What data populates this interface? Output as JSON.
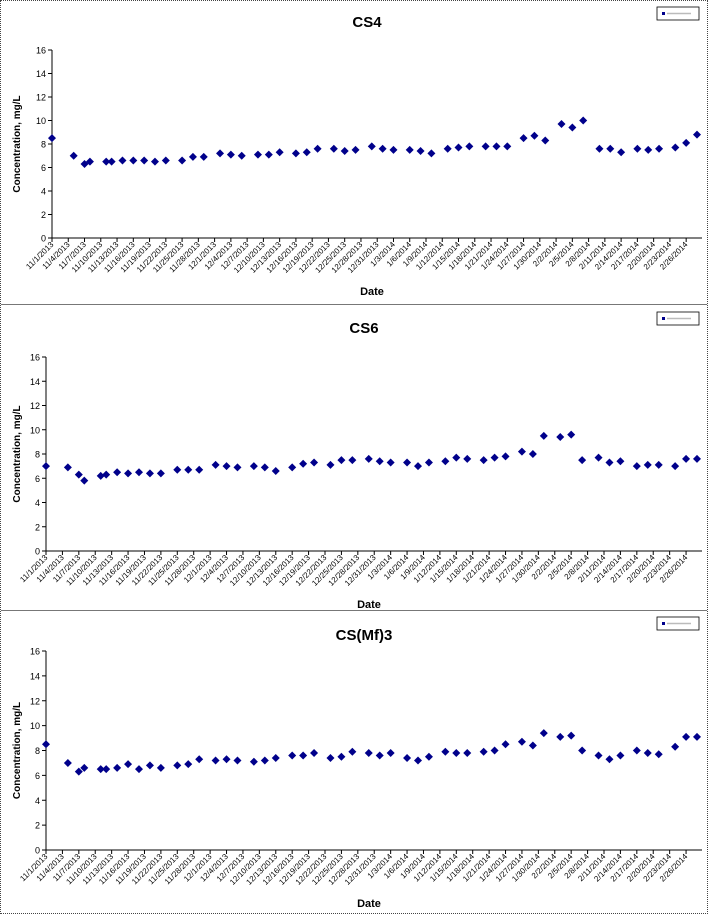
{
  "chart_data": [
    {
      "type": "scatter",
      "title": "CS4",
      "xlabel": "Date",
      "ylabel": "Concentration, mg/L",
      "ylim": [
        0,
        16
      ],
      "yticks": [
        0,
        2,
        4,
        6,
        8,
        10,
        12,
        14,
        16
      ],
      "xlim": [
        "11/1/2013",
        "2/28/2014"
      ],
      "xtick_labels": [
        "11/1/2013",
        "11/4/2013",
        "11/7/2013",
        "11/10/2013",
        "11/13/2013",
        "11/16/2013",
        "11/19/2013",
        "11/22/2013",
        "11/25/2013",
        "11/28/2013",
        "12/1/2013",
        "12/4/2013",
        "12/7/2013",
        "12/10/2013",
        "12/13/2013",
        "12/16/2013",
        "12/19/2013",
        "12/22/2013",
        "12/25/2013",
        "12/28/2013",
        "12/31/2013",
        "1/3/2014",
        "1/6/2014",
        "1/9/2014",
        "1/12/2014",
        "1/15/2014",
        "1/18/2014",
        "1/21/2014",
        "1/24/2014",
        "1/27/2014",
        "1/30/2014",
        "2/2/2014",
        "2/5/2014",
        "2/8/2014",
        "2/11/2014",
        "2/14/2014",
        "2/17/2014",
        "2/20/2014",
        "2/23/2014",
        "2/26/2014"
      ],
      "grid": false,
      "legend": "top-right",
      "marker_color": "#00008b",
      "series": [
        {
          "x": [
            "11/1/2013",
            "11/5/2013",
            "11/7/2013",
            "11/8/2013",
            "11/11/2013",
            "11/12/2013",
            "11/14/2013",
            "11/16/2013",
            "11/18/2013",
            "11/20/2013",
            "11/22/2013",
            "11/25/2013",
            "11/27/2013",
            "11/29/2013",
            "12/2/2013",
            "12/4/2013",
            "12/6/2013",
            "12/9/2013",
            "12/11/2013",
            "12/13/2013",
            "12/16/2013",
            "12/18/2013",
            "12/20/2013",
            "12/23/2013",
            "12/25/2013",
            "12/27/2013",
            "12/30/2013",
            "1/1/2014",
            "1/3/2014",
            "1/6/2014",
            "1/8/2014",
            "1/10/2014",
            "1/13/2014",
            "1/15/2014",
            "1/17/2014",
            "1/20/2014",
            "1/22/2014",
            "1/24/2014",
            "1/27/2014",
            "1/29/2014",
            "1/31/2014",
            "2/3/2014",
            "2/5/2014",
            "2/7/2014",
            "2/10/2014",
            "2/12/2014",
            "2/14/2014",
            "2/17/2014",
            "2/19/2014",
            "2/21/2014",
            "2/24/2014",
            "2/26/2014",
            "2/28/2014"
          ],
          "y": [
            8.5,
            7.0,
            6.3,
            6.5,
            6.5,
            6.5,
            6.6,
            6.6,
            6.6,
            6.5,
            6.6,
            6.6,
            6.9,
            6.9,
            7.2,
            7.1,
            7.0,
            7.1,
            7.1,
            7.3,
            7.2,
            7.3,
            7.6,
            7.6,
            7.4,
            7.5,
            7.8,
            7.6,
            7.5,
            7.5,
            7.4,
            7.2,
            7.6,
            7.7,
            7.8,
            7.8,
            7.8,
            7.8,
            8.5,
            8.7,
            8.3,
            9.7,
            9.4,
            10.0,
            7.6,
            7.6,
            7.3,
            7.6,
            7.5,
            7.6,
            7.7,
            8.1,
            8.8
          ]
        }
      ]
    },
    {
      "type": "scatter",
      "title": "CS6",
      "xlabel": "Date",
      "ylabel": "Concentration, mg/L",
      "ylim": [
        0,
        16
      ],
      "yticks": [
        0,
        2,
        4,
        6,
        8,
        10,
        12,
        14,
        16
      ],
      "xlim": [
        "11/1/2013",
        "2/28/2014"
      ],
      "xtick_labels": [
        "11/1/2013",
        "11/4/2013",
        "11/7/2013",
        "11/10/2013",
        "11/13/2013",
        "11/16/2013",
        "11/19/2013",
        "11/22/2013",
        "11/25/2013",
        "11/28/2013",
        "12/1/2013",
        "12/4/2013",
        "12/7/2013",
        "12/10/2013",
        "12/13/2013",
        "12/16/2013",
        "12/19/2013",
        "12/22/2013",
        "12/25/2013",
        "12/28/2013",
        "12/31/2013",
        "1/3/2014",
        "1/6/2014",
        "1/9/2014",
        "1/12/2014",
        "1/15/2014",
        "1/18/2014",
        "1/21/2014",
        "1/24/2014",
        "1/27/2014",
        "1/30/2014",
        "2/2/2014",
        "2/5/2014",
        "2/8/2014",
        "2/11/2014",
        "2/14/2014",
        "2/17/2014",
        "2/20/2014",
        "2/23/2014",
        "2/26/2014"
      ],
      "grid": false,
      "legend": "top-right",
      "marker_color": "#00008b",
      "series": [
        {
          "x": [
            "11/1/2013",
            "11/5/2013",
            "11/7/2013",
            "11/8/2013",
            "11/11/2013",
            "11/12/2013",
            "11/14/2013",
            "11/16/2013",
            "11/18/2013",
            "11/20/2013",
            "11/22/2013",
            "11/25/2013",
            "11/27/2013",
            "11/29/2013",
            "12/2/2013",
            "12/4/2013",
            "12/6/2013",
            "12/9/2013",
            "12/11/2013",
            "12/13/2013",
            "12/16/2013",
            "12/18/2013",
            "12/20/2013",
            "12/23/2013",
            "12/25/2013",
            "12/27/2013",
            "12/30/2013",
            "1/1/2014",
            "1/3/2014",
            "1/6/2014",
            "1/8/2014",
            "1/10/2014",
            "1/13/2014",
            "1/15/2014",
            "1/17/2014",
            "1/20/2014",
            "1/22/2014",
            "1/24/2014",
            "1/27/2014",
            "1/29/2014",
            "1/31/2014",
            "2/3/2014",
            "2/5/2014",
            "2/7/2014",
            "2/10/2014",
            "2/12/2014",
            "2/14/2014",
            "2/17/2014",
            "2/19/2014",
            "2/21/2014",
            "2/24/2014",
            "2/26/2014",
            "2/28/2014"
          ],
          "y": [
            7.0,
            6.9,
            6.3,
            5.8,
            6.2,
            6.3,
            6.5,
            6.4,
            6.5,
            6.4,
            6.4,
            6.7,
            6.7,
            6.7,
            7.1,
            7.0,
            6.9,
            7.0,
            6.9,
            6.6,
            6.9,
            7.2,
            7.3,
            7.1,
            7.5,
            7.5,
            7.6,
            7.4,
            7.3,
            7.3,
            7.0,
            7.3,
            7.4,
            7.7,
            7.6,
            7.5,
            7.7,
            7.8,
            8.2,
            8.0,
            9.5,
            9.4,
            9.6,
            7.5,
            7.7,
            7.3,
            7.4,
            7.0,
            7.1,
            7.1,
            7.0,
            7.6,
            7.6
          ]
        }
      ]
    },
    {
      "type": "scatter",
      "title": "CS(Mf)3",
      "xlabel": "Date",
      "ylabel": "Concentration, mg/L",
      "ylim": [
        0,
        16
      ],
      "yticks": [
        0,
        2,
        4,
        6,
        8,
        10,
        12,
        14,
        16
      ],
      "xlim": [
        "11/1/2013",
        "2/28/2014"
      ],
      "xtick_labels": [
        "11/1/2013",
        "11/4/2013",
        "11/7/2013",
        "11/10/2013",
        "11/13/2013",
        "11/16/2013",
        "11/19/2013",
        "11/22/2013",
        "11/25/2013",
        "11/28/2013",
        "12/1/2013",
        "12/4/2013",
        "12/7/2013",
        "12/10/2013",
        "12/13/2013",
        "12/16/2013",
        "12/19/2013",
        "12/22/2013",
        "12/25/2013",
        "12/28/2013",
        "12/31/2013",
        "1/3/2014",
        "1/6/2014",
        "1/9/2014",
        "1/12/2014",
        "1/15/2014",
        "1/18/2014",
        "1/21/2014",
        "1/24/2014",
        "1/27/2014",
        "1/30/2014",
        "2/2/2014",
        "2/5/2014",
        "2/8/2014",
        "2/11/2014",
        "2/14/2014",
        "2/17/2014",
        "2/20/2014",
        "2/23/2014",
        "2/26/2014"
      ],
      "grid": false,
      "legend": "top-right",
      "marker_color": "#00008b",
      "series": [
        {
          "x": [
            "11/1/2013",
            "11/5/2013",
            "11/7/2013",
            "11/8/2013",
            "11/11/2013",
            "11/12/2013",
            "11/14/2013",
            "11/16/2013",
            "11/18/2013",
            "11/20/2013",
            "11/22/2013",
            "11/25/2013",
            "11/27/2013",
            "11/29/2013",
            "12/2/2013",
            "12/4/2013",
            "12/6/2013",
            "12/9/2013",
            "12/11/2013",
            "12/13/2013",
            "12/16/2013",
            "12/18/2013",
            "12/20/2013",
            "12/23/2013",
            "12/25/2013",
            "12/27/2013",
            "12/30/2013",
            "1/1/2014",
            "1/3/2014",
            "1/6/2014",
            "1/8/2014",
            "1/10/2014",
            "1/13/2014",
            "1/15/2014",
            "1/17/2014",
            "1/20/2014",
            "1/22/2014",
            "1/24/2014",
            "1/27/2014",
            "1/29/2014",
            "1/31/2014",
            "2/3/2014",
            "2/5/2014",
            "2/7/2014",
            "2/10/2014",
            "2/12/2014",
            "2/14/2014",
            "2/17/2014",
            "2/19/2014",
            "2/21/2014",
            "2/24/2014",
            "2/26/2014",
            "2/28/2014"
          ],
          "y": [
            8.5,
            7.0,
            6.3,
            6.6,
            6.5,
            6.5,
            6.6,
            6.9,
            6.5,
            6.8,
            6.6,
            6.8,
            6.9,
            7.3,
            7.2,
            7.3,
            7.2,
            7.1,
            7.2,
            7.4,
            7.6,
            7.6,
            7.8,
            7.4,
            7.5,
            7.9,
            7.8,
            7.6,
            7.8,
            7.4,
            7.2,
            7.5,
            7.9,
            7.8,
            7.8,
            7.9,
            8.0,
            8.5,
            8.7,
            8.4,
            9.4,
            9.1,
            9.2,
            8.0,
            7.6,
            7.3,
            7.6,
            8.0,
            7.8,
            7.7,
            8.3,
            9.1,
            9.1
          ]
        }
      ]
    }
  ]
}
